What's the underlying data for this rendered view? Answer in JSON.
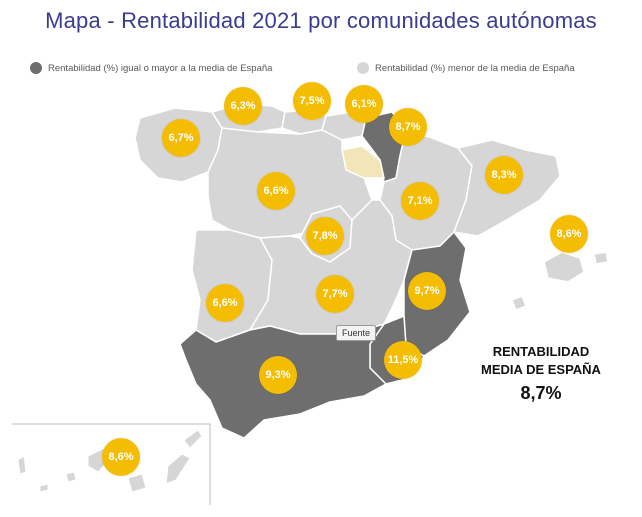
{
  "title": "Mapa - Rentabilidad 2021 por comunidades autónomas",
  "legend": {
    "above": {
      "label": "Rentabilidad (%) igual o mayor a la media de España",
      "color": "#6e6e6e"
    },
    "below": {
      "label": "Rentabilidad (%) menor de la media de España",
      "color": "#d6d6d6"
    }
  },
  "colors": {
    "bubble": "#f5bd02",
    "above": "#6e6e6e",
    "below": "#d6d6d6",
    "highlight": "#f2e6b8"
  },
  "regions": [
    {
      "name": "Galicia",
      "value": "6,7%"
    },
    {
      "name": "Asturias",
      "value": "6,3%"
    },
    {
      "name": "Cantabria",
      "value": "7,5%"
    },
    {
      "name": "País Vasco",
      "value": "6,1%"
    },
    {
      "name": "Navarra",
      "value": "8,7%"
    },
    {
      "name": "Castilla y León",
      "value": "6,6%"
    },
    {
      "name": "Aragón",
      "value": "7,1%"
    },
    {
      "name": "Cataluña",
      "value": "8,3%"
    },
    {
      "name": "Baleares",
      "value": "8,6%"
    },
    {
      "name": "Madrid",
      "value": "7,8%"
    },
    {
      "name": "Extremadura",
      "value": "6,6%"
    },
    {
      "name": "Castilla-La Mancha",
      "value": "7,7%"
    },
    {
      "name": "Comunidad Valenciana",
      "value": "9,7%"
    },
    {
      "name": "Murcia",
      "value": "11,5%"
    },
    {
      "name": "Andalucía",
      "value": "9,3%"
    },
    {
      "name": "Canarias",
      "value": "8,6%"
    }
  ],
  "tooltip": "Fuente",
  "average": {
    "label_line1": "RENTABILIDAD",
    "label_line2": "MEDIA DE ESPAÑA",
    "value": "8,7%"
  }
}
